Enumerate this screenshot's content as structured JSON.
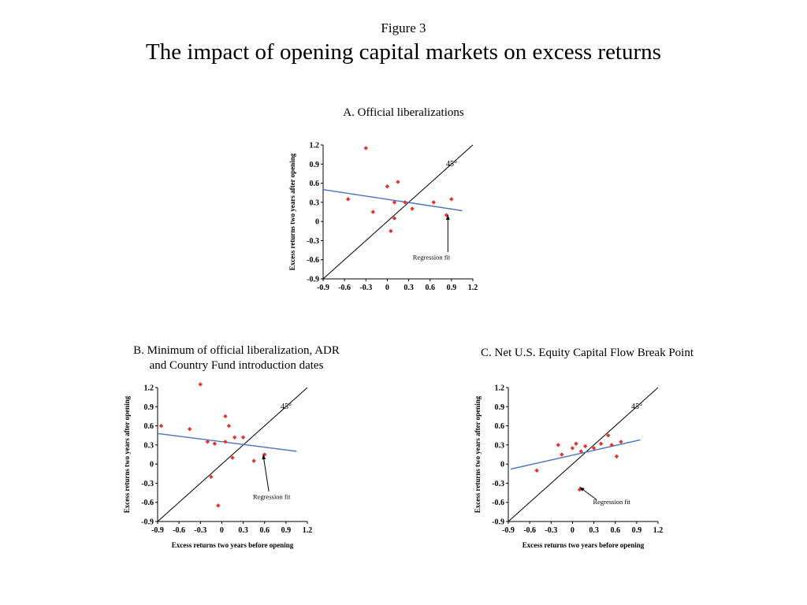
{
  "header": {
    "figure_label": "Figure 3",
    "title": "The impact of opening capital markets on excess returns"
  },
  "colors": {
    "point": "#e8302d",
    "regression": "#4472c4",
    "axis": "#000000"
  },
  "chart_data": [
    {
      "id": "A",
      "type": "scatter",
      "title": "A. Official liberalizations",
      "xlabel": "",
      "ylabel": "Excess returns two years after opening",
      "xlim": [
        -0.9,
        1.2
      ],
      "ylim": [
        -0.9,
        1.2
      ],
      "grid": false,
      "ticks": [
        -0.9,
        -0.6,
        -0.3,
        0,
        0.3,
        0.6,
        0.9,
        1.2
      ],
      "tick_labels": [
        "-0.9",
        "-0.6",
        "-0.3",
        "0",
        "0.3",
        "0.6",
        "0.9",
        "1.2"
      ],
      "diagonal_label": "45°",
      "points": [
        [
          -0.3,
          1.15
        ],
        [
          -0.55,
          0.35
        ],
        [
          -0.2,
          0.15
        ],
        [
          0.0,
          0.55
        ],
        [
          0.15,
          0.62
        ],
        [
          0.1,
          0.3
        ],
        [
          0.25,
          0.3
        ],
        [
          0.1,
          0.05
        ],
        [
          0.05,
          -0.15
        ],
        [
          0.35,
          0.2
        ],
        [
          0.65,
          0.3
        ],
        [
          0.9,
          0.35
        ],
        [
          0.83,
          0.1
        ]
      ],
      "regression": {
        "x1": -0.9,
        "y1": 0.5,
        "x2": 1.05,
        "y2": 0.17
      },
      "regression_label": "Regression fit",
      "label_pos": [
        0.62,
        -0.6
      ],
      "arrow": {
        "from": [
          0.85,
          -0.48
        ],
        "to": [
          0.85,
          0.1
        ]
      }
    },
    {
      "id": "B",
      "type": "scatter",
      "title": "B. Minimum of official liberalization, ADR\nand Country Fund introduction dates",
      "xlabel": "Excess returns two years before opening",
      "ylabel": "Excess returns two years after opening",
      "xlim": [
        -0.9,
        1.2
      ],
      "ylim": [
        -0.9,
        1.2
      ],
      "grid": false,
      "ticks": [
        -0.9,
        -0.6,
        -0.3,
        0,
        0.3,
        0.6,
        0.9,
        1.2
      ],
      "tick_labels": [
        "-0.9",
        "-0.6",
        "-0.3",
        "0",
        "0.3",
        "0.6",
        "0.9",
        "1.2"
      ],
      "diagonal_label": "45°",
      "points": [
        [
          -0.3,
          1.25
        ],
        [
          -0.85,
          0.6
        ],
        [
          -0.45,
          0.55
        ],
        [
          -0.2,
          0.35
        ],
        [
          -0.1,
          0.32
        ],
        [
          0.05,
          0.75
        ],
        [
          0.1,
          0.6
        ],
        [
          0.18,
          0.42
        ],
        [
          0.05,
          0.35
        ],
        [
          0.3,
          0.42
        ],
        [
          0.15,
          0.1
        ],
        [
          -0.15,
          -0.2
        ],
        [
          -0.05,
          -0.65
        ],
        [
          0.45,
          0.05
        ],
        [
          0.6,
          0.15
        ]
      ],
      "regression": {
        "x1": -0.9,
        "y1": 0.48,
        "x2": 1.05,
        "y2": 0.2
      },
      "regression_label": "Regression fit",
      "label_pos": [
        0.7,
        -0.55
      ],
      "arrow": {
        "from": [
          0.66,
          -0.43
        ],
        "to": [
          0.58,
          0.15
        ]
      }
    },
    {
      "id": "C",
      "type": "scatter",
      "title": "C. Net U.S. Equity Capital Flow Break Point",
      "xlabel": "Excess returns two years before opening",
      "ylabel": "Excess returns two years after opening",
      "xlim": [
        -0.9,
        1.2
      ],
      "ylim": [
        -0.9,
        1.2
      ],
      "grid": false,
      "ticks": [
        -0.9,
        -0.6,
        -0.3,
        0,
        0.3,
        0.6,
        0.9,
        1.2
      ],
      "tick_labels": [
        "-0.9",
        "-0.6",
        "-0.3",
        "0",
        "0.3",
        "0.6",
        "0.9",
        "1.2"
      ],
      "diagonal_label": "45°",
      "points": [
        [
          -0.5,
          -0.1
        ],
        [
          -0.2,
          0.3
        ],
        [
          -0.15,
          0.15
        ],
        [
          0.0,
          0.25
        ],
        [
          0.05,
          0.32
        ],
        [
          0.12,
          0.2
        ],
        [
          0.18,
          0.28
        ],
        [
          0.1,
          -0.4
        ],
        [
          0.3,
          0.25
        ],
        [
          0.4,
          0.32
        ],
        [
          0.5,
          0.45
        ],
        [
          0.55,
          0.3
        ],
        [
          0.62,
          0.12
        ],
        [
          0.68,
          0.35
        ]
      ],
      "regression": {
        "x1": -0.87,
        "y1": -0.08,
        "x2": 0.95,
        "y2": 0.38
      },
      "regression_label": "Regression fit",
      "label_pos": [
        0.55,
        -0.63
      ],
      "arrow": {
        "from": [
          0.34,
          -0.56
        ],
        "to": [
          0.1,
          -0.36
        ]
      }
    }
  ]
}
